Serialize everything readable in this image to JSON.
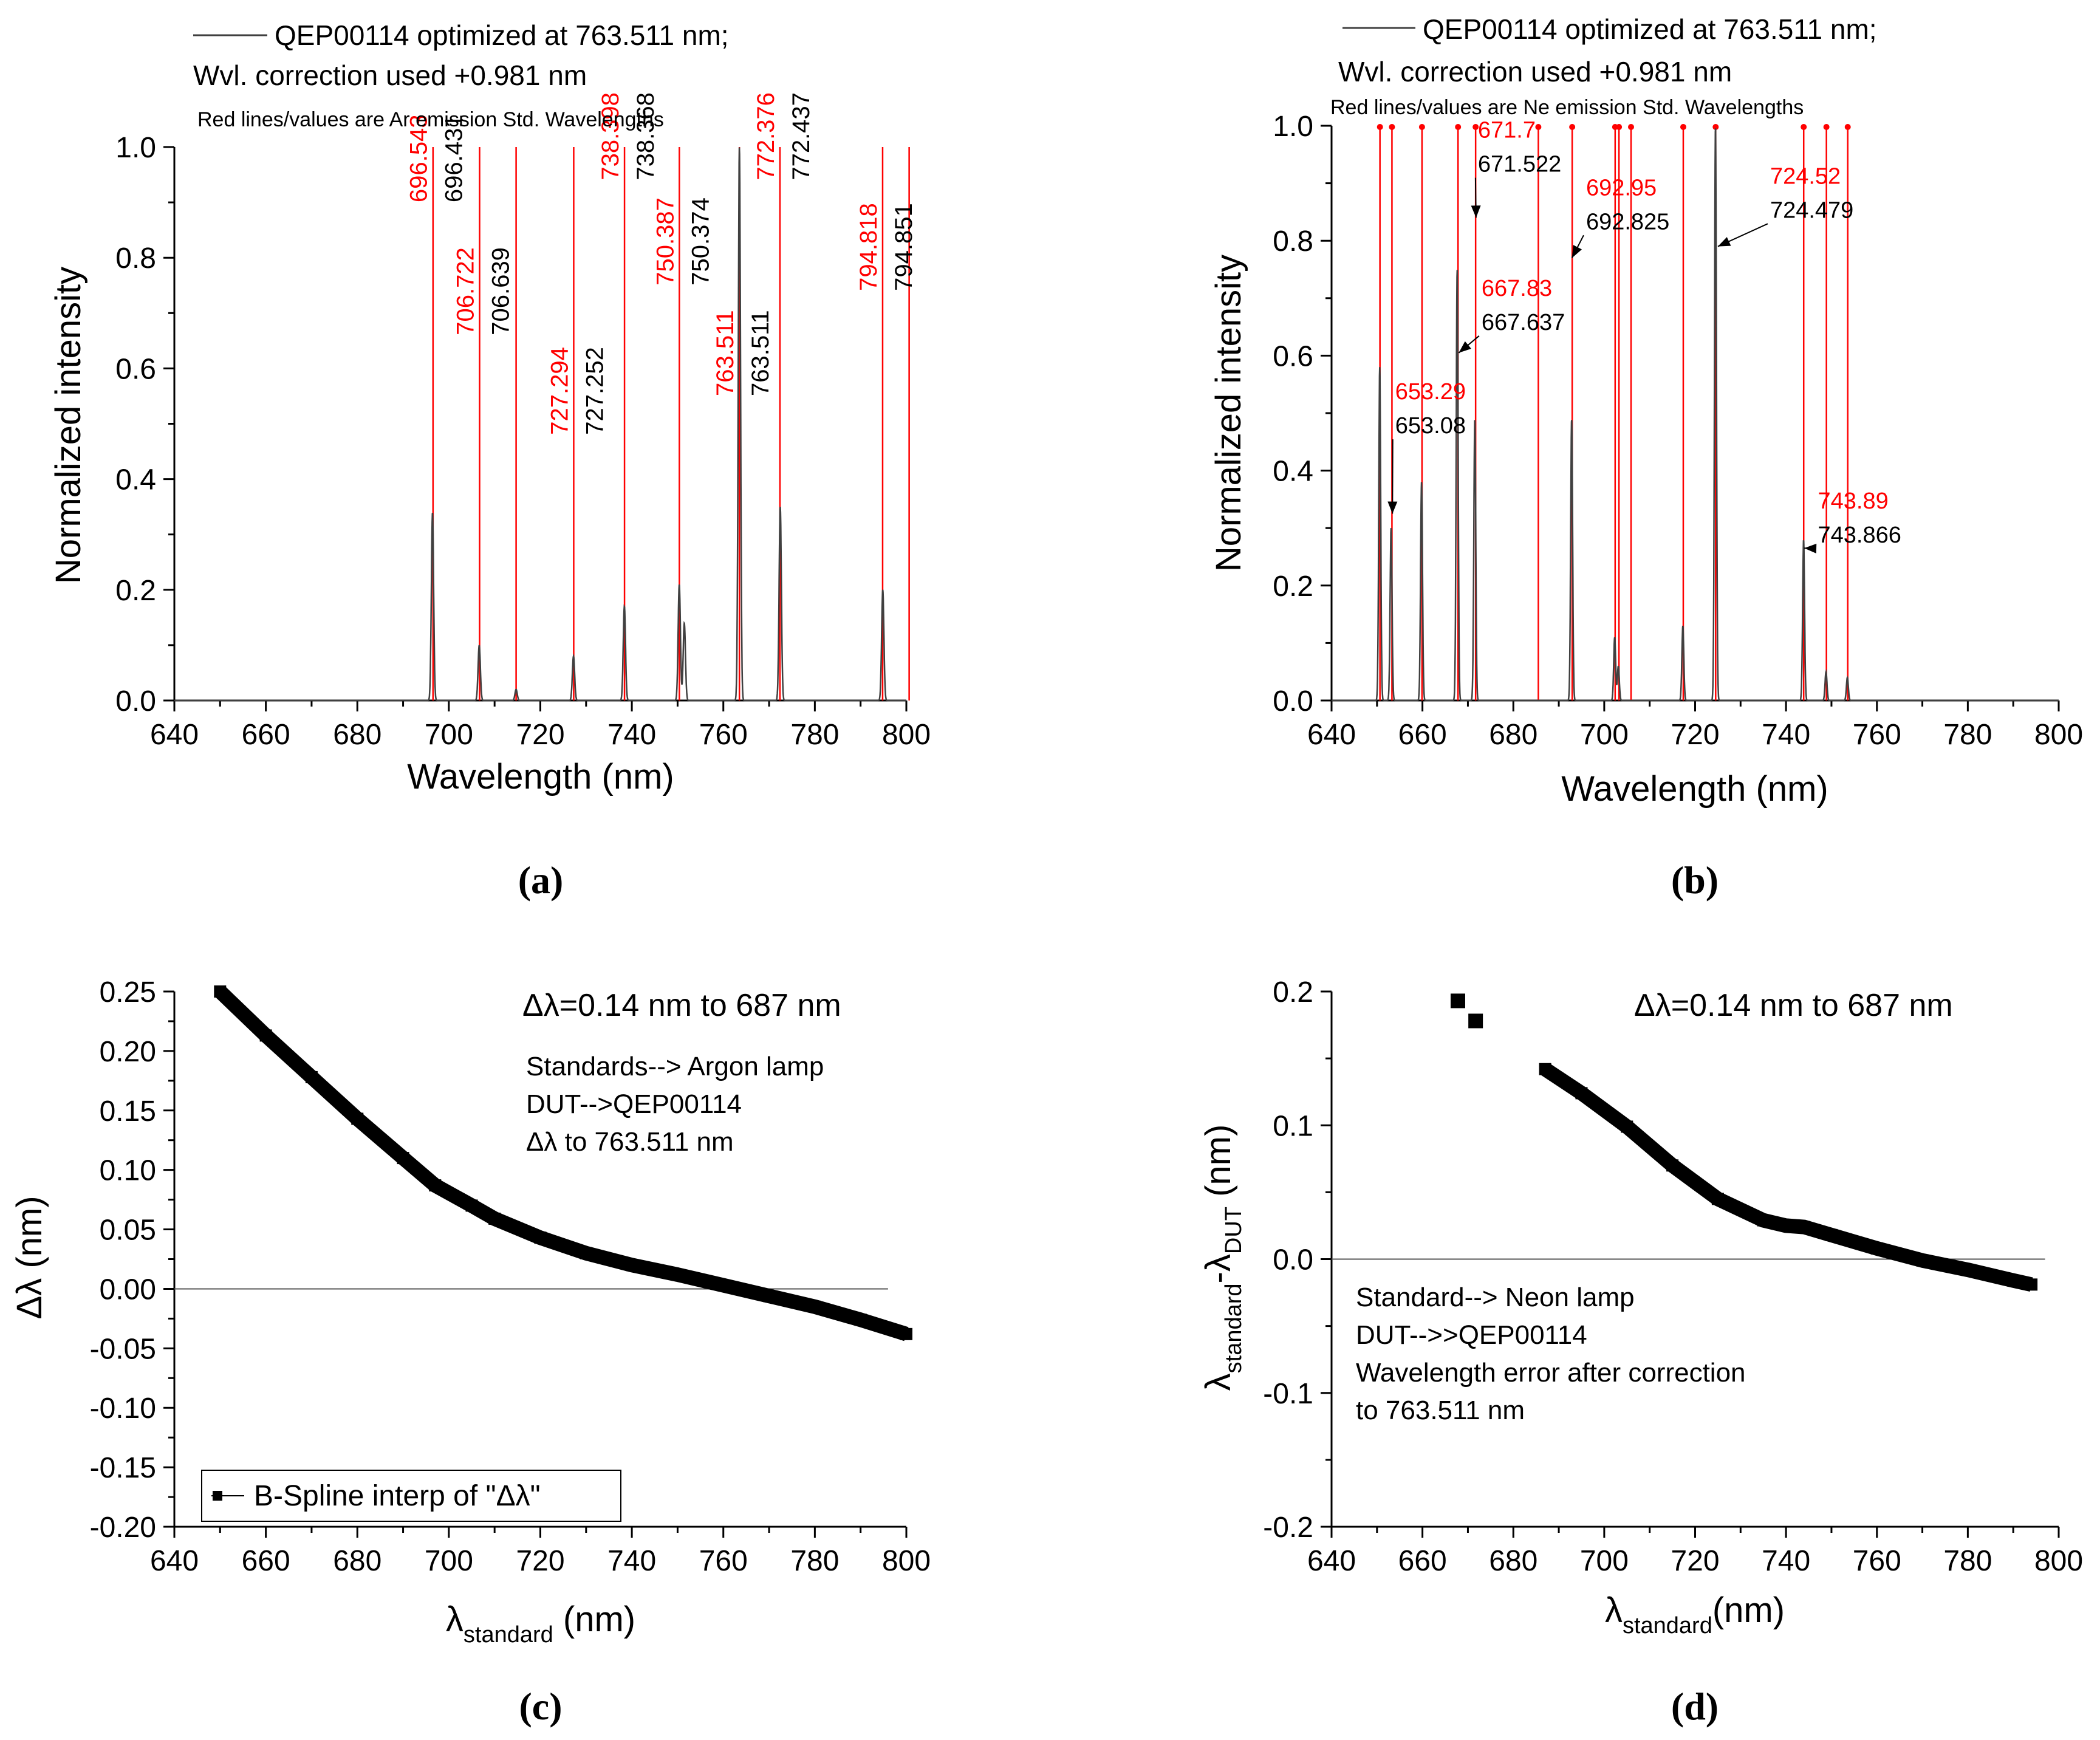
{
  "chart_data": [
    {
      "panel": "a",
      "type": "line",
      "legend": [
        "QEP00114 optimized at 763.511 nm;",
        "Wvl. correction used +0.981 nm"
      ],
      "note": "Red lines/values are Ar emission Std. Wavelengths",
      "xlabel": "Wavelength (nm)",
      "ylabel": "Normalized intensity",
      "xlim": [
        640,
        800
      ],
      "ylim": [
        0,
        1.0
      ],
      "xticks": [
        640,
        660,
        680,
        700,
        720,
        740,
        760,
        780,
        800
      ],
      "yticks": [
        0.0,
        0.2,
        0.4,
        0.6,
        0.8,
        1.0
      ],
      "series_color": "#404040",
      "ref_color": "#ff0000",
      "ref_lines": [
        696.543,
        706.722,
        714.704,
        727.294,
        738.398,
        750.387,
        763.511,
        772.376,
        794.818,
        800.616
      ],
      "peaks": [
        {
          "x": 696.43,
          "y": 0.34
        },
        {
          "x": 706.64,
          "y": 0.1
        },
        {
          "x": 714.7,
          "y": 0.02
        },
        {
          "x": 727.25,
          "y": 0.08
        },
        {
          "x": 738.37,
          "y": 0.17
        },
        {
          "x": 750.37,
          "y": 0.21
        },
        {
          "x": 751.47,
          "y": 0.14
        },
        {
          "x": 763.51,
          "y": 1.0
        },
        {
          "x": 772.44,
          "y": 0.35
        },
        {
          "x": 794.85,
          "y": 0.2
        }
      ],
      "labels": [
        {
          "std": "696.543",
          "meas": "696.431",
          "x": 696.5,
          "ytop": 0.9
        },
        {
          "std": "706.722",
          "meas": "706.639",
          "x": 706.7,
          "ytop": 0.66
        },
        {
          "std": "727.294",
          "meas": "727.252",
          "x": 727.3,
          "ytop": 0.48
        },
        {
          "std": "738.398",
          "meas": "738.368",
          "x": 738.4,
          "ytop": 0.94
        },
        {
          "std": "750.387",
          "meas": "750.374",
          "x": 750.4,
          "ytop": 0.75
        },
        {
          "std": "763.511",
          "meas": "763.511",
          "x": 763.5,
          "ytop": 0.55
        },
        {
          "std": "772.376",
          "meas": "772.437",
          "x": 772.4,
          "ytop": 0.94
        },
        {
          "std": "794.818",
          "meas": "794.851",
          "x": 794.8,
          "ytop": 0.74
        }
      ],
      "caption": "(a)"
    },
    {
      "panel": "b",
      "type": "line",
      "legend": [
        "QEP00114 optimized at 763.511 nm;",
        "Wvl. correction used +0.981 nm"
      ],
      "note": "Red lines/values are Ne emission Std. Wavelengths",
      "xlabel": "Wavelength (nm)",
      "ylabel": "Normalized intensity",
      "xlim": [
        640,
        800
      ],
      "ylim": [
        0,
        1.0
      ],
      "xticks": [
        640,
        660,
        680,
        700,
        720,
        740,
        760,
        780,
        800
      ],
      "yticks": [
        0.0,
        0.2,
        0.4,
        0.6,
        0.8,
        1.0
      ],
      "series_color": "#404040",
      "ref_color": "#ff0000",
      "ref_lines": [
        650.65,
        653.29,
        659.9,
        667.83,
        671.7,
        685.5,
        692.95,
        702.4,
        703.24,
        705.9,
        717.39,
        724.52,
        743.89,
        748.89,
        753.58
      ],
      "peaks": [
        {
          "x": 650.6,
          "y": 0.58
        },
        {
          "x": 653.1,
          "y": 0.3
        },
        {
          "x": 659.8,
          "y": 0.38
        },
        {
          "x": 667.64,
          "y": 0.75
        },
        {
          "x": 671.52,
          "y": 0.49
        },
        {
          "x": 692.83,
          "y": 0.49
        },
        {
          "x": 702.3,
          "y": 0.11
        },
        {
          "x": 703.1,
          "y": 0.06
        },
        {
          "x": 717.3,
          "y": 0.13
        },
        {
          "x": 724.48,
          "y": 1.0
        },
        {
          "x": 743.87,
          "y": 0.28
        },
        {
          "x": 748.8,
          "y": 0.05
        },
        {
          "x": 753.5,
          "y": 0.04
        }
      ],
      "labels": [
        {
          "std": "671.7",
          "meas": "671.522",
          "tx": 672.2,
          "ty": 0.975,
          "ax": 671.8,
          "ay": 0.84
        },
        {
          "std": "692.95",
          "meas": "692.825",
          "tx": 696.0,
          "ty": 0.875,
          "ax": 692.9,
          "ay": 0.77
        },
        {
          "std": "724.52",
          "meas": "724.479",
          "tx": 736.5,
          "ty": 0.895,
          "ax": 725.0,
          "ay": 0.79
        },
        {
          "std": "667.83",
          "meas": "667.637",
          "tx": 673.0,
          "ty": 0.7,
          "ax": 668.0,
          "ay": 0.605
        },
        {
          "std": "653.29",
          "meas": "653.08",
          "tx": 654.0,
          "ty": 0.52,
          "ax": 653.4,
          "ay": 0.325
        },
        {
          "std": "743.89",
          "meas": "743.866",
          "tx": 747.0,
          "ty": 0.33,
          "ax": 744.0,
          "ay": 0.265
        }
      ],
      "caption": "(b)"
    },
    {
      "panel": "c",
      "type": "scatter",
      "annotation": "Δλ=0.14 nm to 687 nm",
      "notes": [
        "Standards--> Argon lamp",
        "DUT-->QEP00114",
        "Δλ  to 763.511 nm"
      ],
      "legend": "B-Spline interp of \"Δλ\"",
      "xlabel_main": "λ",
      "xlabel_sub": "standard",
      "xlabel_tail": " (nm)",
      "ylabel": "Δλ (nm)",
      "xlim": [
        640,
        800
      ],
      "ylim": [
        -0.2,
        0.25
      ],
      "xticks": [
        640,
        660,
        680,
        700,
        720,
        740,
        760,
        780,
        800
      ],
      "yticks": [
        "0.25",
        "0.20",
        "0.15",
        "0.10",
        "0.05",
        "0.00",
        "-0.05",
        "-0.10",
        "-0.15",
        "-0.20"
      ],
      "x": [
        650,
        660,
        670,
        680,
        690,
        697,
        705,
        710,
        720,
        730,
        740,
        750,
        760,
        770,
        780,
        790,
        800
      ],
      "y": [
        0.25,
        0.213,
        0.178,
        0.143,
        0.11,
        0.087,
        0.07,
        0.059,
        0.043,
        0.03,
        0.02,
        0.012,
        0.003,
        -0.006,
        -0.015,
        -0.026,
        -0.038
      ],
      "caption": "(c)"
    },
    {
      "panel": "d",
      "type": "scatter",
      "annotation": "Δλ=0.14 nm to 687 nm",
      "notes": [
        "Standard--> Neon lamp",
        "DUT-->>QEP00114",
        "Wavelength error after correction",
        "to 763.511 nm"
      ],
      "xlabel_main": "λ",
      "xlabel_sub": "standard",
      "xlabel_tail": "(nm)",
      "ylabel_main": "λ",
      "ylabel_sub1": "standard",
      "ylabel_mid": "-λ",
      "ylabel_sub2": "DUT",
      "ylabel_tail": " (nm)",
      "xlim": [
        640,
        800
      ],
      "ylim": [
        -0.2,
        0.2
      ],
      "xticks": [
        640,
        660,
        680,
        700,
        720,
        740,
        760,
        780,
        800
      ],
      "yticks": [
        "0.2",
        "0.1",
        "0.0",
        "-0.1",
        "-0.2"
      ],
      "isolated_points": [
        {
          "x": 667.8,
          "y": 0.193
        },
        {
          "x": 671.7,
          "y": 0.178
        }
      ],
      "x": [
        687,
        695,
        705,
        715,
        725,
        735,
        740,
        744,
        750,
        760,
        770,
        780,
        790,
        794
      ],
      "y": [
        0.142,
        0.124,
        0.099,
        0.07,
        0.045,
        0.029,
        0.025,
        0.024,
        0.018,
        0.008,
        -0.001,
        -0.008,
        -0.016,
        -0.019
      ],
      "caption": "(d)"
    }
  ]
}
